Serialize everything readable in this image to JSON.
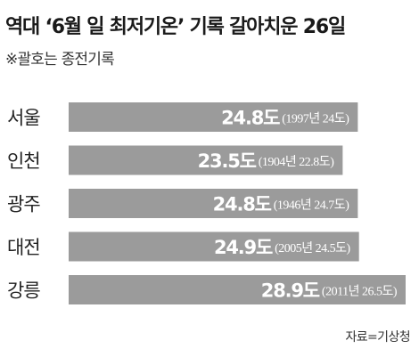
{
  "title": "역대 ‘6월 일 최저기온’ 기록 갈아치운 26일",
  "subtitle": "※괄호는 종전기록",
  "source": "자료=기상청",
  "colors": {
    "bar": "#9b9b9b",
    "value_text": "#ffffff",
    "note_text": "#ffffff",
    "category_text": "#222222"
  },
  "chart_data": {
    "type": "bar",
    "orientation": "horizontal",
    "unit": "도",
    "categories": [
      "서울",
      "인천",
      "광주",
      "대전",
      "강릉"
    ],
    "values": [
      24.8,
      23.5,
      24.8,
      24.9,
      28.9
    ],
    "value_labels": [
      "24.8도",
      "23.5도",
      "24.8도",
      "24.9도",
      "28.9도"
    ],
    "previous_records": [
      "(1997년 24도)",
      "(1904년 22.8도)",
      "(1946년 24.7도)",
      "(2005년 24.5도)",
      "(2011년 26.5도)"
    ],
    "title": "역대 ‘6월 일 최저기온’ 기록 갈아치운 26일",
    "xlabel": "",
    "ylabel": "",
    "grid": false,
    "legend": "none"
  }
}
